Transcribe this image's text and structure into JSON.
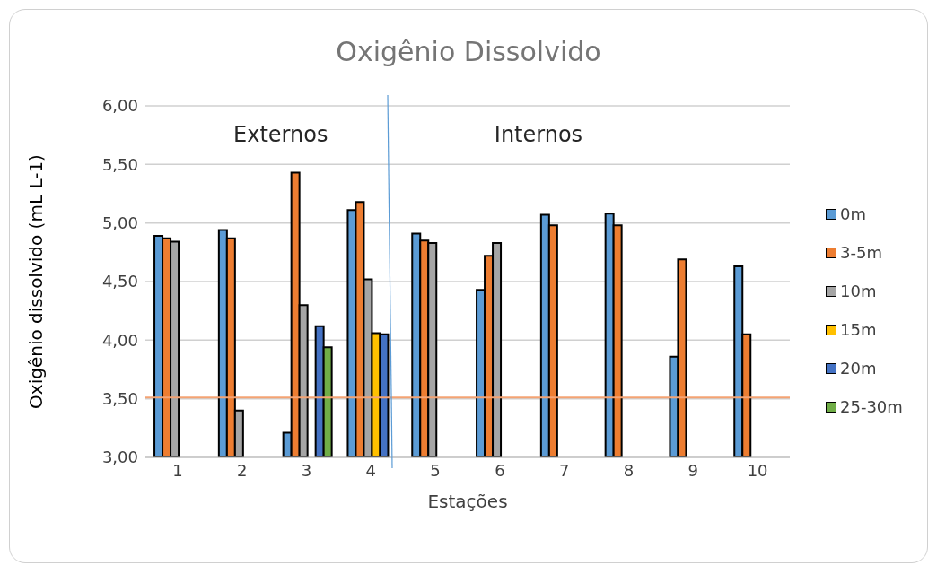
{
  "chart_data": {
    "type": "bar",
    "title": "Oxigênio Dissolvido",
    "xlabel": "Estações",
    "ylabel": "Oxigênio dissolvido (mL L-1)",
    "categories": [
      "1",
      "2",
      "3",
      "4",
      "5",
      "6",
      "7",
      "8",
      "9",
      "10"
    ],
    "series": [
      {
        "name": "0m",
        "color": "#5b9bd5",
        "values": [
          4.89,
          4.94,
          3.21,
          5.11,
          4.91,
          4.43,
          5.07,
          5.08,
          3.86,
          4.63
        ]
      },
      {
        "name": "3-5m",
        "color": "#ed7d31",
        "values": [
          4.87,
          4.87,
          5.43,
          5.18,
          4.85,
          4.72,
          4.98,
          4.98,
          4.69,
          4.05
        ]
      },
      {
        "name": "10m",
        "color": "#a5a5a5",
        "values": [
          4.84,
          3.4,
          4.3,
          4.52,
          4.83,
          4.83,
          null,
          null,
          null,
          null
        ]
      },
      {
        "name": "15m",
        "color": "#ffc000",
        "values": [
          null,
          null,
          null,
          4.06,
          null,
          null,
          null,
          null,
          null,
          null
        ]
      },
      {
        "name": "20m",
        "color": "#4472c4",
        "values": [
          null,
          null,
          4.12,
          4.05,
          null,
          null,
          null,
          null,
          null,
          null
        ]
      },
      {
        "name": "25-30m",
        "color": "#70ad47",
        "values": [
          null,
          null,
          3.94,
          null,
          null,
          null,
          null,
          null,
          null,
          null
        ]
      }
    ],
    "ylim": [
      3,
      6
    ],
    "yticks": [
      {
        "value": 3,
        "label": "3,00"
      },
      {
        "value": 3.5,
        "label": "3,50"
      },
      {
        "value": 4,
        "label": "4,00"
      },
      {
        "value": 4.5,
        "label": "4,50"
      },
      {
        "value": 5,
        "label": "5,00"
      },
      {
        "value": 5.5,
        "label": "5,50"
      },
      {
        "value": 6,
        "label": "6,00"
      }
    ],
    "ref_lines": [
      {
        "axis": "y",
        "value": 3.51,
        "color": "#f4a373"
      }
    ],
    "annotations": [
      "Externos",
      "Internos"
    ],
    "grid": "y",
    "legend": "right"
  }
}
